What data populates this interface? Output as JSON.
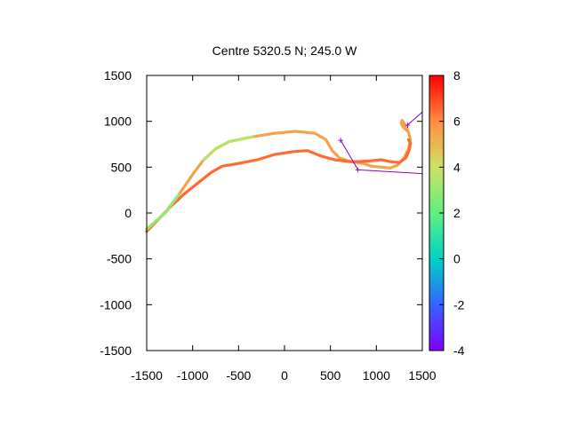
{
  "chart_data": {
    "type": "line",
    "title": "Centre 5320.5 N; 245.0  W",
    "xlabel": "",
    "ylabel": "",
    "xlim": [
      -1500,
      1500
    ],
    "ylim": [
      -1500,
      1500
    ],
    "xticks": [
      -1500,
      -1000,
      -500,
      0,
      500,
      1000,
      1500
    ],
    "yticks": [
      -1500,
      -1000,
      -500,
      0,
      500,
      1000,
      1500
    ],
    "grid": false,
    "colorbar": {
      "range": [
        -4,
        8
      ],
      "ticks": [
        -4,
        -2,
        0,
        2,
        4,
        6,
        8
      ],
      "palette": "rainbow"
    },
    "series": [
      {
        "color_value": 5.5,
        "points": [
          [
            -1500,
            -180
          ],
          [
            -1300,
            0
          ],
          [
            -1150,
            200
          ],
          [
            -1000,
            420
          ],
          [
            -880,
            580
          ],
          [
            -750,
            700
          ],
          [
            -600,
            780
          ],
          [
            -350,
            830
          ],
          [
            -100,
            870
          ],
          [
            120,
            890
          ],
          [
            330,
            870
          ],
          [
            450,
            800
          ],
          [
            520,
            680
          ],
          [
            600,
            600
          ],
          [
            720,
            560
          ],
          [
            850,
            540
          ],
          [
            950,
            510
          ],
          [
            1050,
            500
          ],
          [
            1150,
            490
          ],
          [
            1230,
            520
          ],
          [
            1300,
            600
          ],
          [
            1350,
            700
          ],
          [
            1370,
            800
          ],
          [
            1350,
            880
          ],
          [
            1320,
            950
          ],
          [
            1300,
            980
          ],
          [
            1280,
            1010
          ],
          [
            1270,
            980
          ],
          [
            1290,
            940
          ],
          [
            1320,
            910
          ],
          [
            1350,
            880
          ]
        ]
      },
      {
        "color_value": 6.5,
        "points": [
          [
            -1500,
            -200
          ],
          [
            -1400,
            -100
          ],
          [
            -1250,
            60
          ],
          [
            -1100,
            200
          ],
          [
            -950,
            320
          ],
          [
            -800,
            440
          ],
          [
            -680,
            510
          ],
          [
            -500,
            540
          ],
          [
            -300,
            580
          ],
          [
            -100,
            640
          ],
          [
            100,
            670
          ],
          [
            250,
            680
          ],
          [
            400,
            620
          ],
          [
            550,
            580
          ],
          [
            700,
            560
          ],
          [
            820,
            560
          ],
          [
            950,
            570
          ],
          [
            1050,
            580
          ],
          [
            1150,
            560
          ],
          [
            1250,
            550
          ],
          [
            1320,
            600
          ],
          [
            1360,
            690
          ],
          [
            1370,
            760
          ],
          [
            1350,
            800
          ]
        ]
      }
    ],
    "markers": [
      {
        "label": "+",
        "x": 610,
        "y": 795
      },
      {
        "label": "+",
        "x": 800,
        "y": 470
      },
      {
        "label": "+",
        "x": 1340,
        "y": 960
      }
    ],
    "overlay_lines": [
      {
        "points": [
          [
            610,
            795
          ],
          [
            800,
            470
          ]
        ]
      },
      {
        "points": [
          [
            800,
            470
          ],
          [
            1500,
            430
          ]
        ]
      },
      {
        "points": [
          [
            1340,
            960
          ],
          [
            1500,
            1100
          ]
        ]
      }
    ]
  }
}
